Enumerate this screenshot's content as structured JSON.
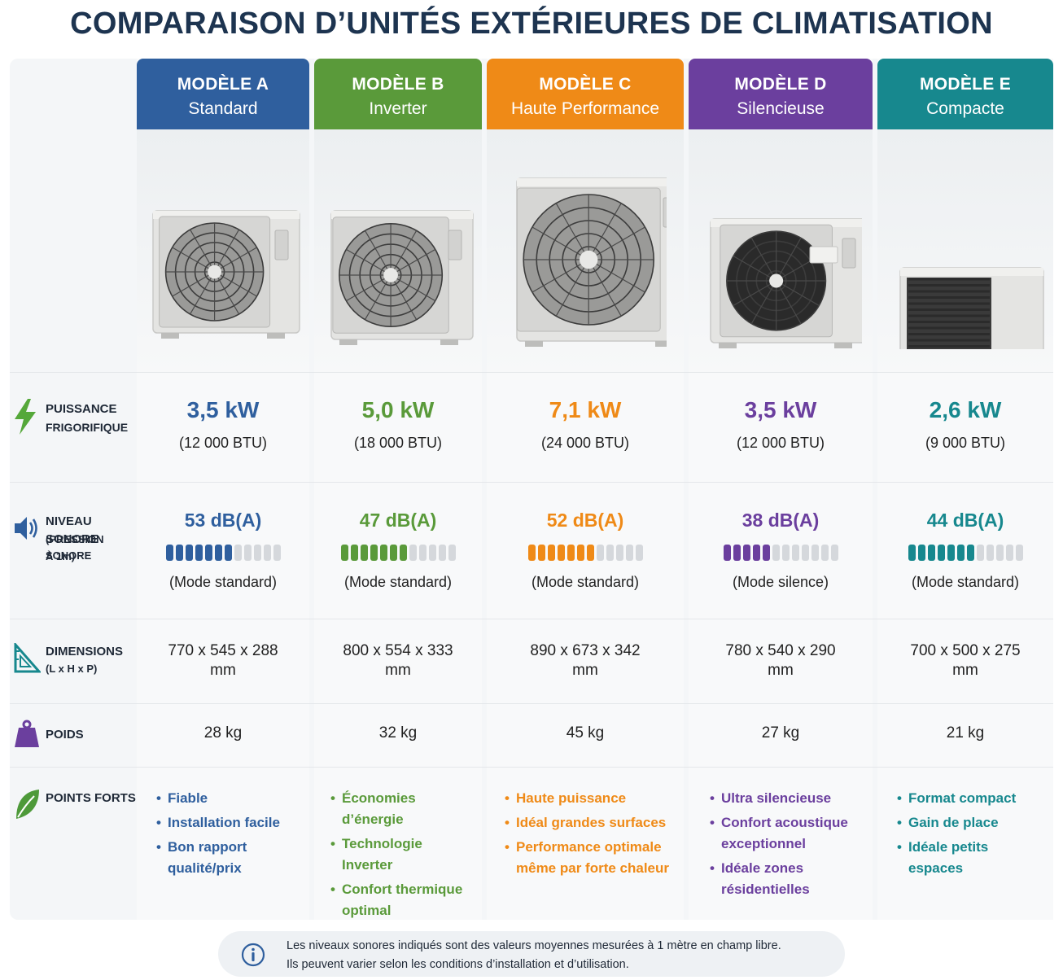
{
  "title": "COMPARAISON D’UNITÉS EXTÉRIEURES DE CLIMATISATION",
  "rows": {
    "power": {
      "label1": "PUISSANCE",
      "label2": "FRIGORIFIQUE",
      "icon": "lightning-icon"
    },
    "noise": {
      "label1": "NIVEAU SONORE",
      "label2": "(PRESSION SONORE",
      "label3": "À 1m)",
      "icon": "speaker-icon"
    },
    "dims": {
      "label1": "DIMENSIONS",
      "label2": "(L x H x P)",
      "icon": "ruler-triangle-icon"
    },
    "weight": {
      "label1": "POIDS",
      "icon": "weight-icon"
    },
    "strengths": {
      "label1": "POINTS FORTS",
      "icon": "leaf-icon"
    }
  },
  "models": [
    {
      "name": "MODÈLE A",
      "subtitle": "Standard",
      "color": "#2f5f9e",
      "power": "3,5 kW",
      "btu": "(12 000 BTU)",
      "noise": "53 dB(A)",
      "noise_level": 7,
      "noise_mode": "(Mode standard)",
      "dims": "770 x 545 x 288",
      "dims_unit": "mm",
      "weight": "28 kg",
      "strengths": [
        "Fiable",
        "Installation facile",
        "Bon rapport qualité/prix"
      ]
    },
    {
      "name": "MODÈLE B",
      "subtitle": "Inverter",
      "color": "#5a9a3a",
      "power": "5,0 kW",
      "btu": "(18 000 BTU)",
      "noise": "47 dB(A)",
      "noise_level": 7,
      "noise_mode": "(Mode standard)",
      "dims": "800 x 554 x 333",
      "dims_unit": "mm",
      "weight": "32 kg",
      "strengths": [
        "Économies d’énergie",
        "Technologie Inverter",
        "Confort thermique optimal"
      ]
    },
    {
      "name": "MODÈLE C",
      "subtitle": "Haute Performance",
      "color": "#ef8a17",
      "power": "7,1 kW",
      "btu": "(24 000 BTU)",
      "noise": "52 dB(A)",
      "noise_level": 7,
      "noise_mode": "(Mode standard)",
      "dims": "890 x 673 x 342",
      "dims_unit": "mm",
      "weight": "45 kg",
      "strengths": [
        "Haute puissance",
        "Idéal grandes surfaces",
        "Performance optimale même par forte chaleur"
      ]
    },
    {
      "name": "MODÈLE D",
      "subtitle": "Silencieuse",
      "color": "#6b3f9e",
      "power": "3,5 kW",
      "btu": "(12 000 BTU)",
      "noise": "38 dB(A)",
      "noise_level": 5,
      "noise_mode": "(Mode silence)",
      "dims": "780 x 540 x 290",
      "dims_unit": "mm",
      "weight": "27 kg",
      "strengths": [
        "Ultra silencieuse",
        "Confort acoustique exceptionnel",
        "Idéale zones résidentielles"
      ]
    },
    {
      "name": "MODÈLE E",
      "subtitle": "Compacte",
      "color": "#17888e",
      "power": "2,6 kW",
      "btu": "(9 000 BTU)",
      "noise": "44 dB(A)",
      "noise_level": 7,
      "noise_mode": "(Mode standard)",
      "dims": "700 x 500 x 275",
      "dims_unit": "mm",
      "weight": "21 kg",
      "strengths": [
        "Format compact",
        "Gain de place",
        "Idéale petits espaces"
      ]
    }
  ],
  "note": {
    "icon": "info-icon",
    "line1": "Les niveaux sonores indiqués sont des valeurs moyennes mesurées à 1 mètre en champ libre.",
    "line2": "Ils peuvent varier selon les conditions d’installation et d’utilisation."
  }
}
